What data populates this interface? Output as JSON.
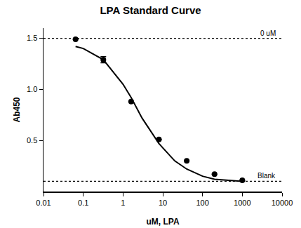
{
  "chart_data": {
    "type": "scatter",
    "title": "LPA Standard Curve",
    "x_label": "uM, LPA",
    "y_label": "Ab450",
    "log": "x",
    "grid": false,
    "xlim": [
      0.01,
      10000
    ],
    "xticks": [
      0.01,
      0.1,
      1,
      10,
      100,
      1000,
      10000
    ],
    "ylim": [
      0,
      1.6
    ],
    "yticks": [
      0.5,
      {
        "value": 1,
        "label": "1.0"
      },
      1.5
    ],
    "series": [
      {
        "type": "scatter",
        "color": "#000000",
        "marker": "circle",
        "x": [
          0.064,
          0.32,
          1.6,
          8,
          40,
          200,
          1000
        ],
        "values": [
          1.49,
          1.29,
          0.88,
          0.51,
          0.3,
          0.17,
          0.11
        ],
        "errors": [
          0,
          0.03,
          0,
          0,
          0,
          0,
          0
        ]
      },
      {
        "type": "line",
        "color": "#000000",
        "line_style": "solid",
        "x": [
          0.064,
          0.1,
          0.32,
          1,
          1.6,
          3,
          8,
          20,
          40,
          100,
          200,
          1000
        ],
        "values": [
          1.42,
          1.4,
          1.29,
          1.05,
          0.92,
          0.72,
          0.47,
          0.3,
          0.22,
          0.15,
          0.12,
          0.1
        ]
      }
    ],
    "annotations": [
      {
        "text": "0 uM",
        "y": 1.5,
        "line_style": "dot"
      },
      {
        "text": "Blank",
        "y": 0.1,
        "line_style": "dot"
      }
    ]
  }
}
